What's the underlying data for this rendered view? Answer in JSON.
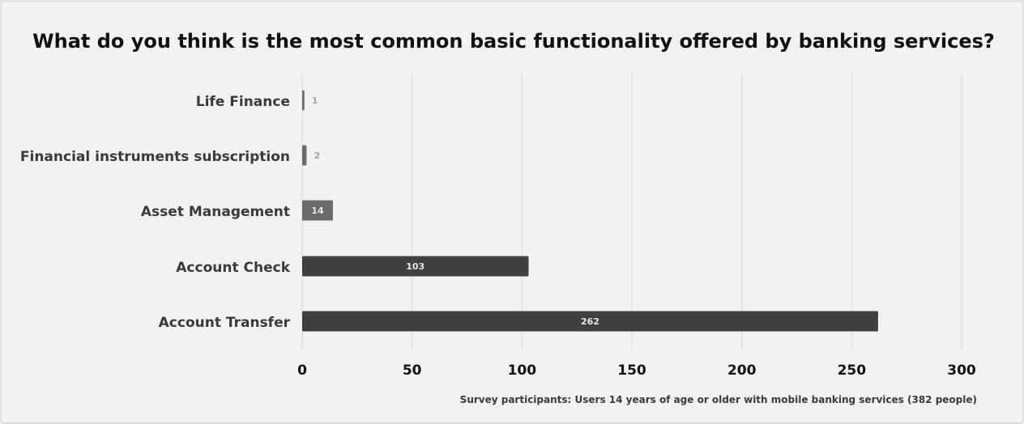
{
  "colors": {
    "bar_dark": "#404040",
    "bar_mid": "#6b6b6b",
    "grid": "#d9d9d9",
    "label_inside": "#e8e8e8",
    "label_outside": "#a6a6a6"
  },
  "chart_data": {
    "type": "bar",
    "orientation": "horizontal",
    "title": "What do you think is the most common basic functionality offered by banking services?",
    "categories": [
      "Life Finance",
      "Financial instruments subscription",
      "Asset Management",
      "Account Check",
      "Account Transfer"
    ],
    "values": [
      1,
      2,
      14,
      103,
      262
    ],
    "xlim": [
      0,
      300
    ],
    "xticks": [
      "0",
      "50",
      "100",
      "150",
      "200",
      "250",
      "300"
    ],
    "grid": "vertical",
    "legend": "none",
    "note": "Survey participants: Users 14 years of age or older with mobile banking services (382 people)"
  }
}
